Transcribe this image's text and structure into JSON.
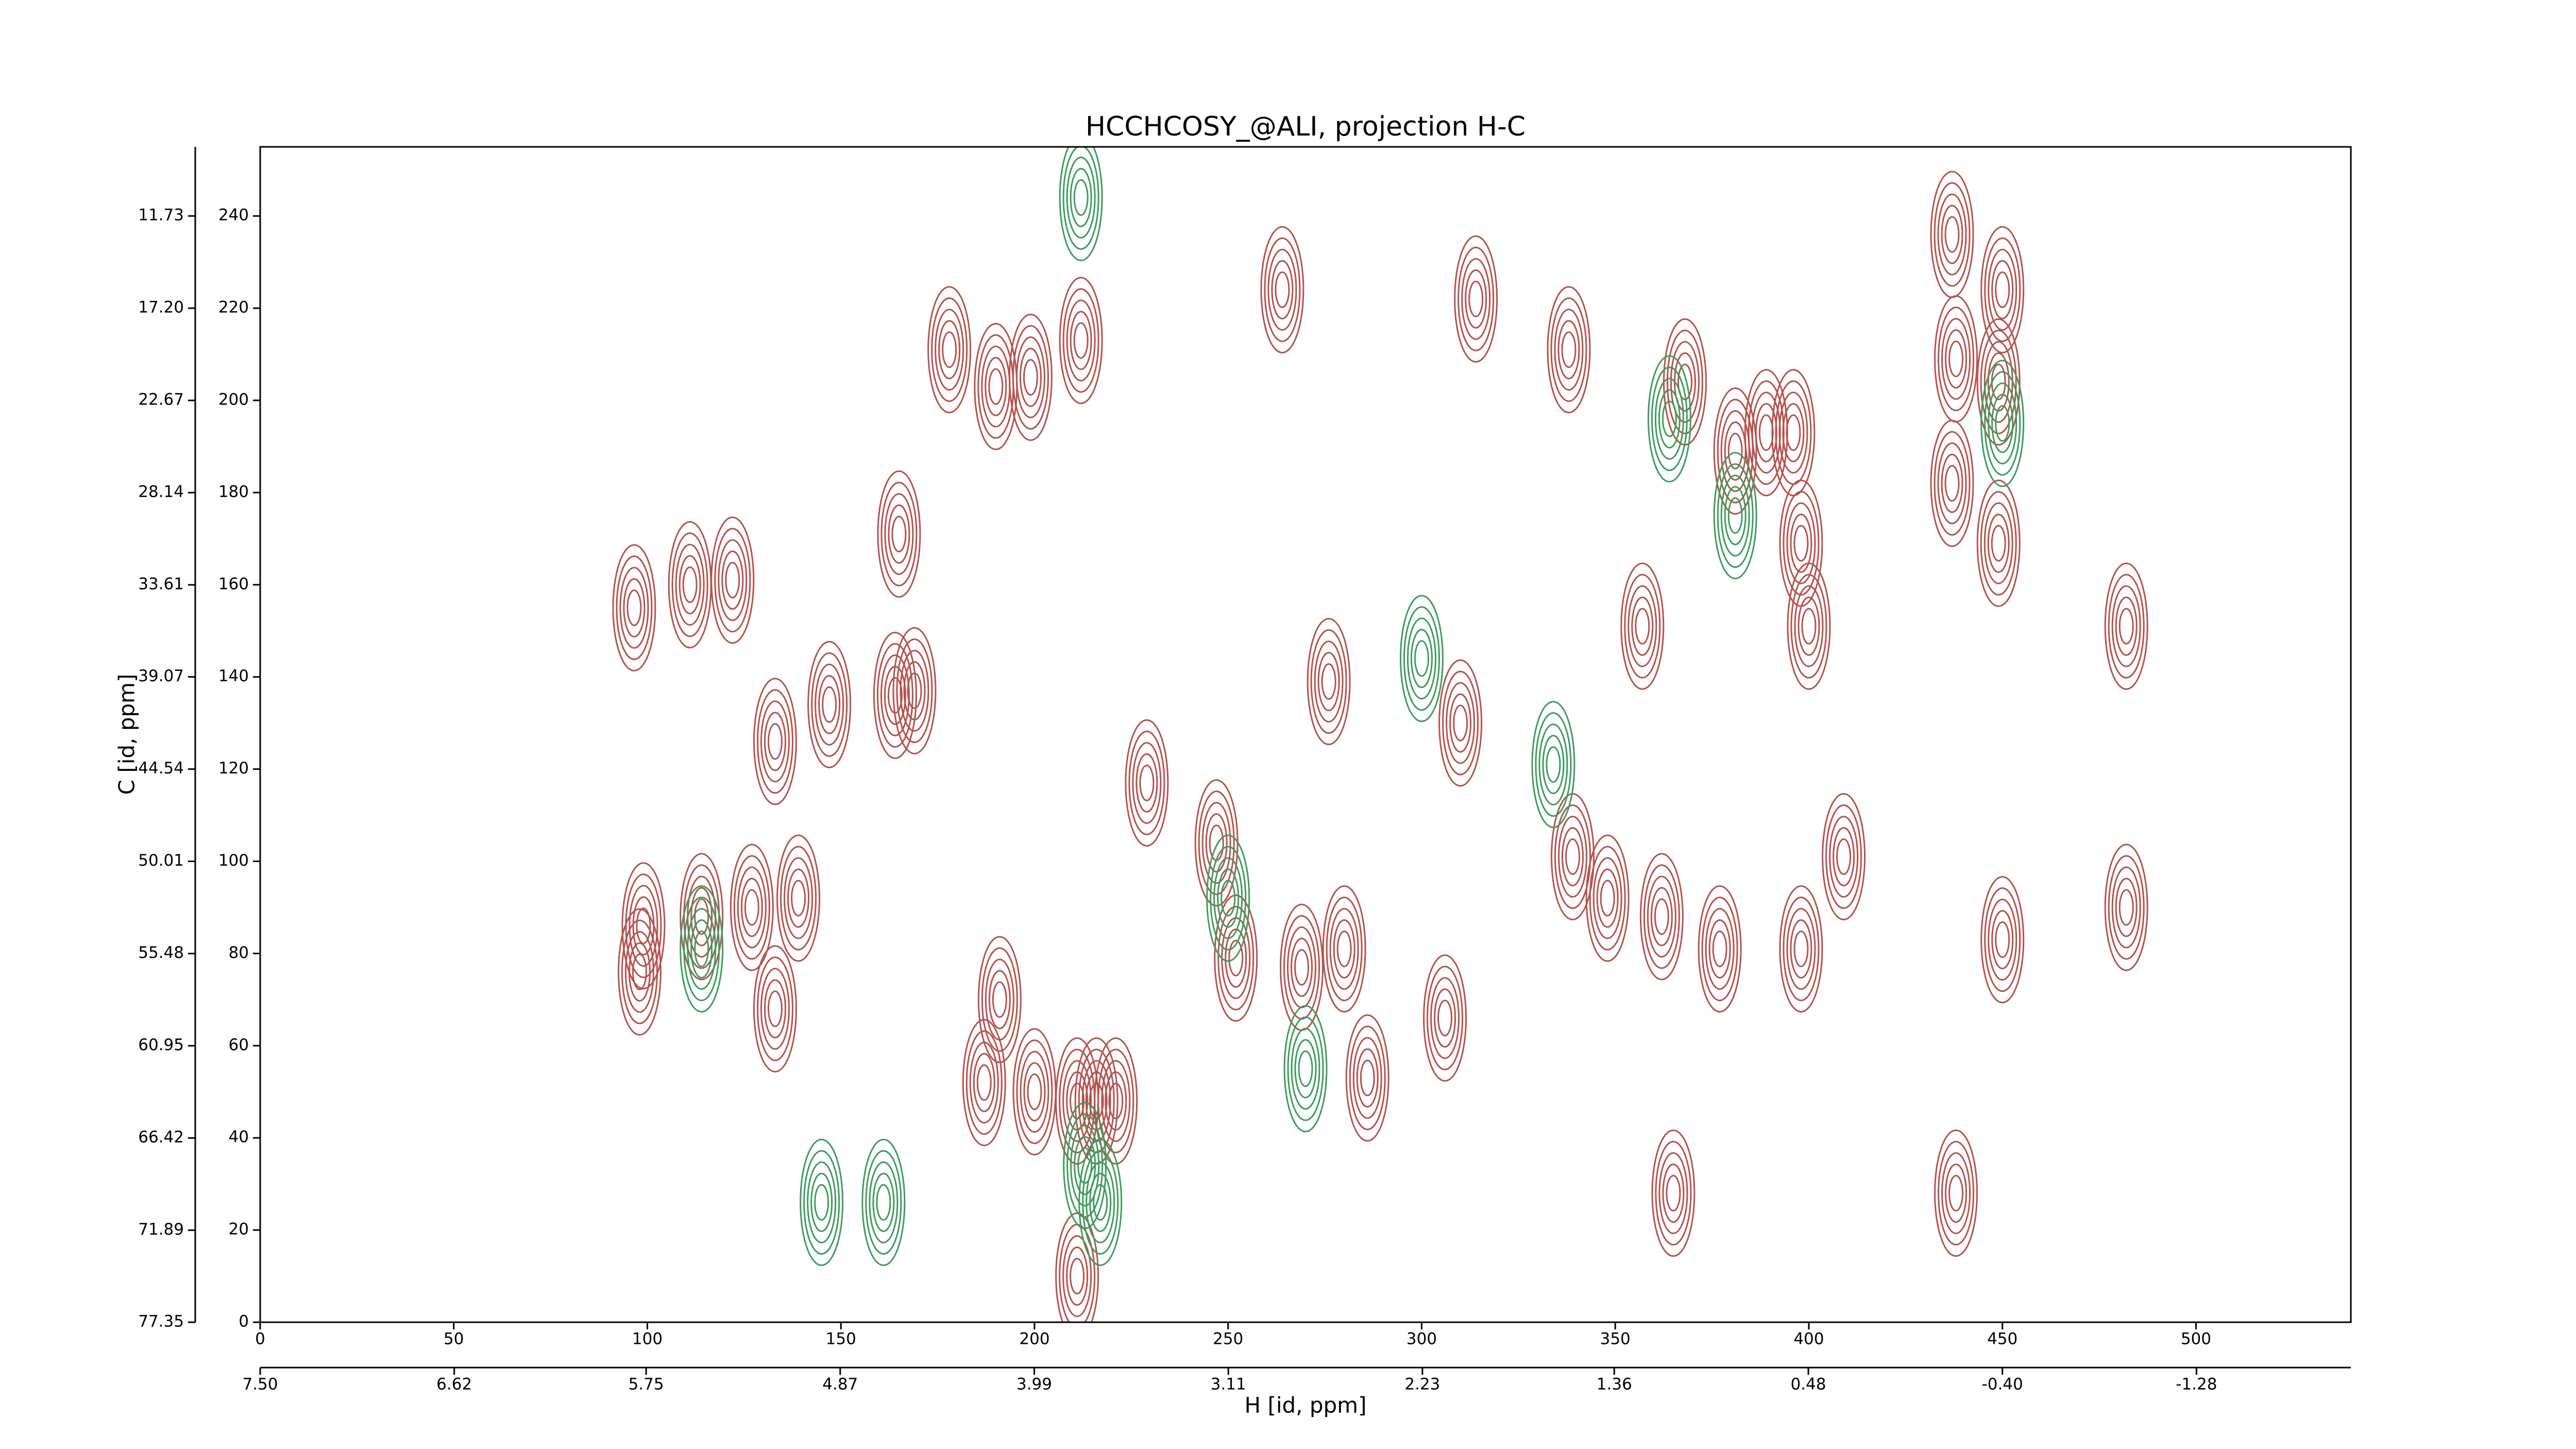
{
  "chart_data": {
    "type": "contour",
    "title": "HCCHCOSY_@ALI, projection H-C",
    "x_label": "H [id, ppm]",
    "y_label": "C [id, ppm]",
    "xlim": [
      0,
      540
    ],
    "ylim": [
      0,
      255
    ],
    "xticks": [
      0,
      50,
      100,
      150,
      200,
      250,
      300,
      350,
      400,
      450,
      500
    ],
    "yticks": [
      0,
      20,
      40,
      60,
      80,
      100,
      120,
      140,
      160,
      180,
      200,
      220,
      240
    ],
    "x2lim": [
      7.5,
      -1.98
    ],
    "x2ticks": [
      {
        "value": 7.5,
        "label": "7.50"
      },
      6.62,
      5.75,
      4.87,
      3.99,
      3.11,
      2.23,
      1.36,
      0.48,
      {
        "value": -0.4,
        "label": "-0.40"
      },
      -1.28
    ],
    "y2lim": [
      77.35,
      7.63
    ],
    "y2ticks": [
      77.35,
      71.89,
      66.42,
      60.95,
      55.48,
      50.01,
      44.54,
      39.07,
      33.61,
      28.14,
      22.67,
      {
        "value": 17.2,
        "label": "17.20"
      },
      11.73
    ],
    "series": [
      {
        "color": "#b5524e",
        "x": [
          96.6,
          111,
          122,
          99,
          98,
          114,
          127,
          133,
          139,
          133,
          147,
          164,
          178,
          190,
          199,
          212,
          165,
          169,
          191,
          187,
          200,
          211,
          216,
          221,
          211,
          229,
          247,
          264,
          252,
          269,
          276,
          280,
          286,
          306,
          310,
          314,
          338,
          339,
          348,
          357,
          362,
          368,
          381,
          389,
          396,
          398,
          400,
          398,
          409,
          437,
          437,
          438,
          449,
          450,
          449,
          450,
          438,
          365,
          482,
          482,
          377
        ],
        "y": [
          155,
          160,
          161,
          86,
          76,
          88,
          90,
          68,
          92,
          126,
          134,
          136,
          211,
          203,
          205,
          213,
          171,
          137,
          70,
          52,
          50,
          48,
          48,
          48,
          10,
          117,
          104,
          224,
          79,
          77,
          139,
          81,
          53,
          66,
          130,
          222,
          211,
          101,
          92,
          151,
          88,
          204,
          189,
          193,
          193,
          169,
          151,
          81,
          101,
          236,
          182,
          209,
          204,
          224,
          169,
          83,
          28,
          28,
          90,
          151,
          81
        ]
      },
      {
        "color": "#3e9b5f",
        "x": [
          212,
          213,
          217,
          270,
          250,
          300,
          334,
          381,
          450,
          145,
          161,
          114,
          364
        ],
        "y": [
          244,
          34,
          26,
          55,
          92,
          144,
          121,
          175,
          195,
          26,
          26,
          81,
          196
        ]
      }
    ]
  }
}
